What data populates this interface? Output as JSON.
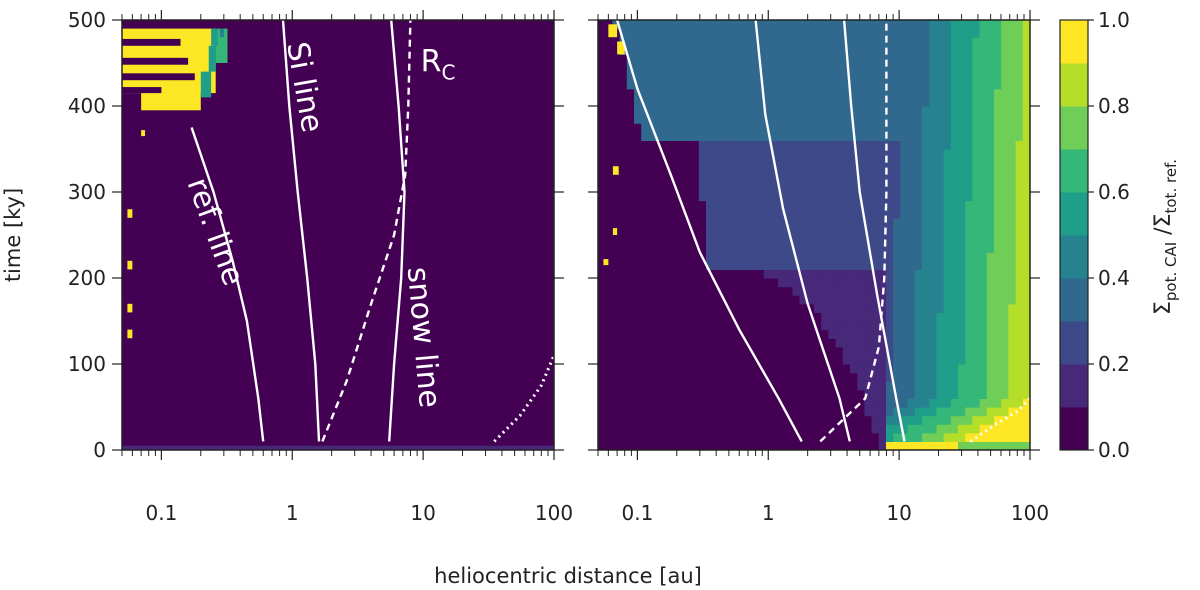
{
  "chart_data": {
    "type": "heatmap",
    "panels": [
      {
        "name": "left",
        "xscale": "log",
        "xlim": [
          0.05,
          100
        ],
        "ylim": [
          0,
          500
        ],
        "x_tick_labels": [
          "0.1",
          "1",
          "10",
          "100"
        ],
        "y_tick_labels": [
          "0",
          "100",
          "200",
          "300",
          "400",
          "500"
        ],
        "annotations": [
          {
            "text": "ref. line",
            "x": 0.22,
            "y": 250,
            "rotation": 70
          },
          {
            "text": "Si line",
            "x": 1.05,
            "y": 420,
            "rotation": 80
          },
          {
            "text": "snow line",
            "x": 8.5,
            "y": 130,
            "rotation": 85
          },
          {
            "text": "R",
            "sub": "C",
            "x": 13,
            "y": 440,
            "rotation": 0
          }
        ],
        "lines": [
          {
            "name": "ref. line",
            "style": "solid",
            "points": [
              [
                0.6,
                10
              ],
              [
                0.55,
                60
              ],
              [
                0.45,
                150
              ],
              [
                0.35,
                220
              ],
              [
                0.25,
                300
              ],
              [
                0.17,
                375
              ]
            ]
          },
          {
            "name": "Si line",
            "style": "solid",
            "points": [
              [
                1.6,
                10
              ],
              [
                1.5,
                100
              ],
              [
                1.3,
                200
              ],
              [
                1.1,
                300
              ],
              [
                0.95,
                400
              ],
              [
                0.85,
                500
              ]
            ]
          },
          {
            "name": "snow line",
            "style": "solid",
            "points": [
              [
                5.5,
                10
              ],
              [
                6.0,
                100
              ],
              [
                6.8,
                200
              ],
              [
                7.2,
                300
              ],
              [
                6.5,
                400
              ],
              [
                5.7,
                500
              ]
            ]
          },
          {
            "name": "R_C",
            "style": "dashed",
            "points": [
              [
                1.7,
                10
              ],
              [
                2.6,
                80
              ],
              [
                4.0,
                170
              ],
              [
                6.0,
                250
              ],
              [
                7.3,
                320
              ],
              [
                7.7,
                400
              ],
              [
                8.0,
                500
              ]
            ]
          },
          {
            "name": "outer",
            "style": "dotted",
            "points": [
              [
                35,
                10
              ],
              [
                55,
                40
              ],
              [
                80,
                75
              ],
              [
                100,
                110
              ]
            ]
          }
        ],
        "cells": [
          {
            "x0": 0.05,
            "x1": 0.26,
            "y0": 415,
            "y1": 490,
            "value": 1.0
          },
          {
            "x0": 0.07,
            "x1": 0.2,
            "y0": 395,
            "y1": 420,
            "value": 1.0
          },
          {
            "x0": 0.26,
            "x1": 0.32,
            "y0": 450,
            "y1": 490,
            "value": 0.65
          }
        ]
      },
      {
        "name": "right",
        "xscale": "log",
        "xlim": [
          0.05,
          100
        ],
        "ylim": [
          0,
          500
        ],
        "x_tick_labels": [
          "0.1",
          "1",
          "10",
          "100"
        ],
        "lines": [
          {
            "name": "ref. line",
            "style": "solid",
            "points": [
              [
                1.8,
                10
              ],
              [
                1.2,
                60
              ],
              [
                0.6,
                140
              ],
              [
                0.3,
                230
              ],
              [
                0.18,
                320
              ],
              [
                0.1,
                420
              ],
              [
                0.07,
                500
              ]
            ]
          },
          {
            "name": "Si line",
            "style": "solid",
            "points": [
              [
                4.2,
                10
              ],
              [
                3.5,
                60
              ],
              [
                2.0,
                170
              ],
              [
                1.3,
                280
              ],
              [
                0.95,
                390
              ],
              [
                0.8,
                500
              ]
            ]
          },
          {
            "name": "snow line",
            "style": "solid",
            "points": [
              [
                11,
                10
              ],
              [
                9.5,
                60
              ],
              [
                6.8,
                180
              ],
              [
                5.0,
                300
              ],
              [
                4.3,
                400
              ],
              [
                3.8,
                500
              ]
            ]
          },
          {
            "name": "R_C",
            "style": "dashed",
            "points": [
              [
                2.5,
                10
              ],
              [
                5.5,
                60
              ],
              [
                7.0,
                120
              ],
              [
                7.7,
                200
              ],
              [
                8.0,
                300
              ],
              [
                8.0,
                500
              ]
            ]
          },
          {
            "name": "outer",
            "style": "dotted",
            "points": [
              [
                35,
                10
              ],
              [
                55,
                30
              ],
              [
                80,
                45
              ],
              [
                100,
                60
              ]
            ]
          }
        ],
        "regions": [
          {
            "y0": 0,
            "y1": 500,
            "x_inner_start": 8,
            "value": 0.25
          },
          {
            "y0": 360,
            "y1": 500,
            "x_inner_start": 0.1,
            "value": 0.3
          },
          {
            "y0": 200,
            "y1": 360,
            "x_inner_start": 0.35,
            "value": 0.2
          }
        ]
      }
    ],
    "xlabel": "heliocentric distance [au]",
    "ylabel": "time [ky]",
    "colorbar": {
      "label": "Σpot. CAI /Σtot. ref.",
      "label_main": "Σ",
      "label_sub1": "pot. CAI",
      "label_sep": " /Σ",
      "label_sub2": "tot. ref.",
      "ticks": [
        "0.0",
        "0.2",
        "0.4",
        "0.6",
        "0.8",
        "1.0"
      ],
      "levels": [
        0,
        0.1,
        0.2,
        0.3,
        0.4,
        0.5,
        0.6,
        0.7,
        0.8,
        0.9,
        1.0
      ],
      "colors": [
        "#440154",
        "#482878",
        "#3e4989",
        "#31688e",
        "#26828e",
        "#1f9e89",
        "#35b779",
        "#6ece58",
        "#b5de2b",
        "#fde725"
      ]
    }
  }
}
